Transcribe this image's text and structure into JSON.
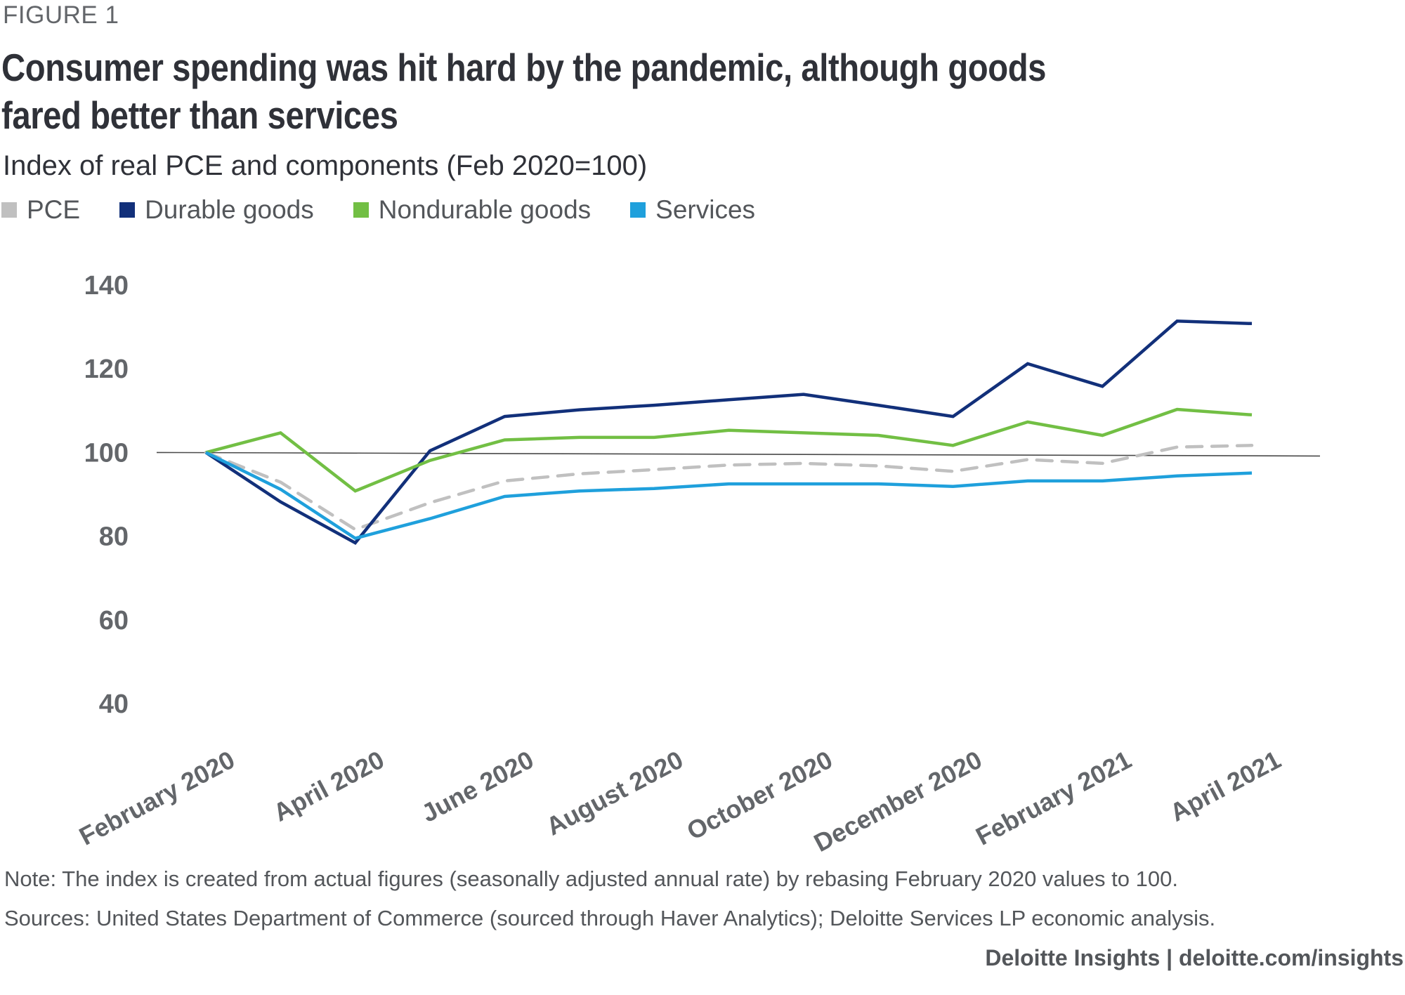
{
  "figure_label": "FIGURE 1",
  "title": "Consumer spending was hit hard by the pandemic, although goods fared better than services",
  "subtitle": "Index of real PCE and components (Feb 2020=100)",
  "legend": [
    {
      "label": "PCE",
      "color": "#c0c0c0"
    },
    {
      "label": "Durable goods",
      "color": "#12307a"
    },
    {
      "label": "Nondurable goods",
      "color": "#72bf44"
    },
    {
      "label": "Services",
      "color": "#1fa0dc"
    }
  ],
  "footer": {
    "note": "Note: The index is created from actual figures (seasonally adjusted annual rate) by rebasing February 2020 values to 100.",
    "sources": "Sources: United States Department of Commerce (sourced through Haver Analytics); Deloitte Services LP economic analysis.",
    "brand": "Deloitte Insights | deloitte.com/insights"
  },
  "chart_data": {
    "type": "line",
    "title": "Consumer spending was hit hard by the pandemic, although goods fared better than services",
    "subtitle": "Index of real PCE and components (Feb 2020=100)",
    "xlabel": "",
    "ylabel": "",
    "ylim": [
      40,
      140
    ],
    "yticks": [
      40,
      60,
      80,
      100,
      120,
      140
    ],
    "ytick_labels": [
      "40",
      "60",
      "80",
      "100",
      "120",
      "140"
    ],
    "reference_line": 100,
    "grid": false,
    "legend_position": "top-left",
    "x": [
      "February 2020",
      "March 2020",
      "April 2020",
      "May 2020",
      "June 2020",
      "July 2020",
      "August 2020",
      "September 2020",
      "October 2020",
      "November 2020",
      "December 2020",
      "January 2021",
      "February 2021",
      "March 2021",
      "April 2021"
    ],
    "xtick_labels": [
      "February 2020",
      "April 2020",
      "June 2020",
      "August 2020",
      "October 2020",
      "December 2020",
      "February 2021",
      "April 2021"
    ],
    "series": [
      {
        "name": "PCE",
        "color": "#c0c0c0",
        "style": "dashed",
        "values": [
          100,
          92.9,
          81.6,
          88.0,
          93.2,
          94.9,
          95.9,
          97.0,
          97.4,
          96.8,
          95.5,
          98.3,
          97.4,
          101.3,
          101.7
        ]
      },
      {
        "name": "Durable goods",
        "color": "#12307a",
        "style": "solid",
        "values": [
          100,
          88.2,
          78.4,
          100.4,
          108.6,
          110.2,
          111.3,
          112.6,
          113.9,
          111.3,
          108.6,
          121.2,
          115.8,
          131.4,
          130.8
        ]
      },
      {
        "name": "Nondurable goods",
        "color": "#72bf44",
        "style": "solid",
        "values": [
          100,
          104.7,
          90.8,
          98.1,
          103.0,
          103.6,
          103.6,
          105.3,
          104.7,
          104.1,
          101.7,
          107.3,
          104.1,
          110.3,
          109.0
        ]
      },
      {
        "name": "Services",
        "color": "#1fa0dc",
        "style": "solid",
        "values": [
          100,
          91.2,
          79.5,
          84.2,
          89.5,
          90.8,
          91.4,
          92.5,
          92.5,
          92.5,
          91.9,
          93.2,
          93.2,
          94.4,
          95.1
        ]
      }
    ]
  }
}
